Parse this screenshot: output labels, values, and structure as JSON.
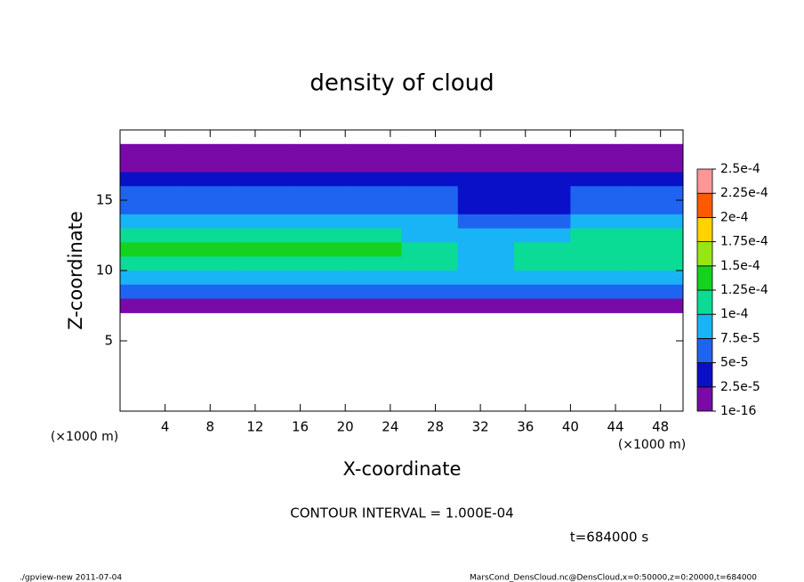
{
  "chart_data": {
    "type": "contour",
    "title": "density of cloud",
    "x_label": "X-coordinate",
    "y_label": "Z-coordinate",
    "x_unit": "(×1000 m)",
    "y_unit": "(×1000 m)",
    "xlim": [
      0,
      50
    ],
    "ylim": [
      0,
      20
    ],
    "xticks": [
      4,
      8,
      12,
      16,
      20,
      24,
      28,
      32,
      36,
      40,
      44,
      48
    ],
    "yticks": [
      5,
      10,
      15
    ],
    "x": [
      2.5,
      7.5,
      12.5,
      17.5,
      22.5,
      27.5,
      32.5,
      37.5,
      42.5,
      47.5
    ],
    "z": [
      18.5,
      17.5,
      16.5,
      15.5,
      14.5,
      13.5,
      12.5,
      11.5,
      10.5,
      9.5,
      8.5,
      7.5
    ],
    "field": [
      [
        1e-05,
        1e-05,
        1e-05,
        1e-05,
        1e-05,
        1e-05,
        1e-05,
        1e-05,
        1e-05,
        1e-05
      ],
      [
        2e-05,
        2e-05,
        2e-05,
        2e-05,
        2e-05,
        2e-05,
        2e-05,
        2e-05,
        2e-05,
        2e-05
      ],
      [
        4e-05,
        4e-05,
        4e-05,
        4e-05,
        4e-05,
        4e-05,
        3e-05,
        3e-05,
        4e-05,
        4e-05
      ],
      [
        6e-05,
        6e-05,
        6e-05,
        5.5e-05,
        5.5e-05,
        5.5e-05,
        4e-05,
        4e-05,
        5.5e-05,
        6e-05
      ],
      [
        7e-05,
        7e-05,
        7e-05,
        6.5e-05,
        6.5e-05,
        6e-05,
        4e-05,
        4.5e-05,
        6e-05,
        6.5e-05
      ],
      [
        8e-05,
        8e-05,
        8e-05,
        8e-05,
        7.8e-05,
        7.5e-05,
        6e-05,
        6.5e-05,
        7.8e-05,
        8e-05
      ],
      [
        0.000105,
        0.000105,
        0.000105,
        0.0001,
        0.0001,
        9e-05,
        8e-05,
        8.5e-05,
        0.0001,
        0.000105
      ],
      [
        0.00013,
        0.00013,
        0.00013,
        0.000128,
        0.000128,
        0.00011,
        9.5e-05,
        0.0001,
        0.000105,
        0.00011
      ],
      [
        0.00012,
        0.00012,
        0.00012,
        0.00012,
        0.00012,
        0.000105,
        9e-05,
        0.000105,
        0.000105,
        0.000105
      ],
      [
        9e-05,
        9e-05,
        9e-05,
        9e-05,
        9e-05,
        8.5e-05,
        8e-05,
        8.5e-05,
        8.5e-05,
        8.5e-05
      ],
      [
        6e-05,
        6e-05,
        6e-05,
        6e-05,
        6e-05,
        6e-05,
        6e-05,
        6e-05,
        6e-05,
        6e-05
      ],
      [
        2e-05,
        2e-05,
        2e-05,
        1e-05,
        2e-05,
        2e-05,
        2e-05,
        2e-05,
        2e-05,
        2e-05
      ]
    ],
    "levels": [
      {
        "value": 1e-16,
        "label": "1e-16"
      },
      {
        "value": 2.5e-05,
        "label": "2.5e-5"
      },
      {
        "value": 5e-05,
        "label": "5e-5"
      },
      {
        "value": 7.5e-05,
        "label": "7.5e-5"
      },
      {
        "value": 0.0001,
        "label": "1e-4"
      },
      {
        "value": 0.000125,
        "label": "1.25e-4"
      },
      {
        "value": 0.00015,
        "label": "1.5e-4"
      },
      {
        "value": 0.000175,
        "label": "1.75e-4"
      },
      {
        "value": 0.0002,
        "label": "2e-4"
      },
      {
        "value": 0.000225,
        "label": "2.25e-4"
      },
      {
        "value": 0.00025,
        "label": "2.5e-4"
      }
    ],
    "level_colors": [
      "#7a0aa8",
      "#0a10c8",
      "#1e64f0",
      "#19b4f5",
      "#0adc96",
      "#14d21e",
      "#96e614",
      "#ffd200",
      "#ff5a00",
      "#ff9696"
    ],
    "contour_note": "CONTOUR INTERVAL = 1.000E-04",
    "time_note": "t=684000 s",
    "footer_left": "./gpview-new  2011-07-04",
    "footer_right": "MarsCond_DensCloud.nc@DensCloud,x=0:50000,z=0:20000,t=684000"
  }
}
